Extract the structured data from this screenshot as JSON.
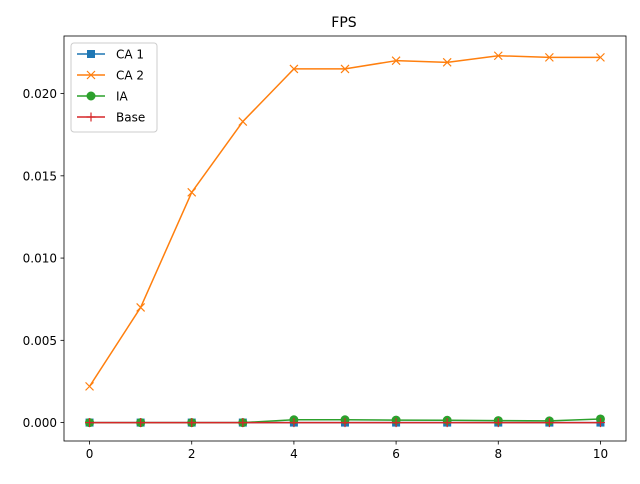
{
  "chart_data": {
    "type": "line",
    "title": "FPS",
    "xlabel": "",
    "ylabel": "",
    "xlim": [
      -0.5,
      10.5
    ],
    "ylim": [
      -0.00112,
      0.0235
    ],
    "xticks": [
      0,
      2,
      4,
      6,
      8,
      10
    ],
    "xtick_labels": [
      "0",
      "2",
      "4",
      "6",
      "8",
      "10"
    ],
    "yticks": [
      0.0,
      0.005,
      0.01,
      0.015,
      0.02
    ],
    "ytick_labels": [
      "0.000",
      "0.005",
      "0.010",
      "0.015",
      "0.020"
    ],
    "grid": false,
    "legend_position": "upper-left",
    "x": [
      0,
      1,
      2,
      3,
      4,
      5,
      6,
      7,
      8,
      9,
      10
    ],
    "series": [
      {
        "name": "CA 1",
        "color": "#1f77b4",
        "marker": "square",
        "values": [
          0,
          0,
          0,
          0,
          0,
          0,
          0,
          0,
          0,
          0,
          0
        ]
      },
      {
        "name": "CA 2",
        "color": "#ff7f0e",
        "marker": "x",
        "values": [
          0.0022,
          0.007,
          0.014,
          0.0183,
          0.0215,
          0.0215,
          0.022,
          0.0219,
          0.0223,
          0.0222,
          0.0222
        ]
      },
      {
        "name": "IA",
        "color": "#2ca02c",
        "marker": "circle",
        "values": [
          0,
          0,
          0,
          0,
          0.00017,
          0.00017,
          0.00015,
          0.00014,
          0.00012,
          0.0001,
          0.00022
        ]
      },
      {
        "name": "Base",
        "color": "#d62728",
        "marker": "plus",
        "values": [
          0,
          0,
          0,
          0,
          0,
          0,
          0,
          0,
          0,
          0,
          0
        ]
      }
    ]
  }
}
